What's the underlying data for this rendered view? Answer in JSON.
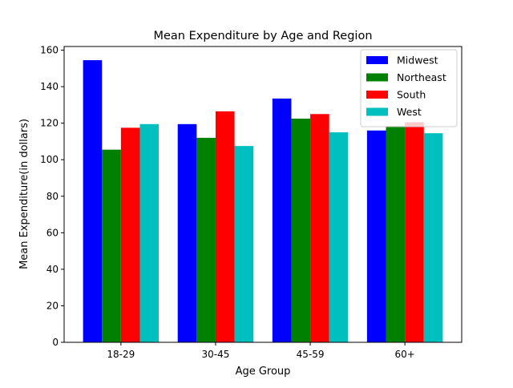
{
  "chart_data": {
    "type": "bar",
    "title": "Mean Expenditure by Age and Region",
    "xlabel": "Age Group",
    "ylabel": "Mean Expenditure(in dollars)",
    "categories": [
      "18-29",
      "30-45",
      "45-59",
      "60+"
    ],
    "ylim": [
      0,
      162
    ],
    "yticks": [
      0,
      20,
      40,
      60,
      80,
      100,
      120,
      140,
      160
    ],
    "grid": false,
    "legend_position": "top-right",
    "series": [
      {
        "name": "Midwest",
        "color": "#0000ff",
        "values": [
          154.5,
          119.5,
          133.5,
          116.0
        ]
      },
      {
        "name": "Northeast",
        "color": "#008000",
        "values": [
          105.5,
          112.0,
          122.5,
          118.5
        ]
      },
      {
        "name": "South",
        "color": "#ff0000",
        "values": [
          117.5,
          126.5,
          125.0,
          120.5
        ]
      },
      {
        "name": "West",
        "color": "#00bfbf",
        "values": [
          119.5,
          107.5,
          115.0,
          114.5
        ]
      }
    ]
  }
}
